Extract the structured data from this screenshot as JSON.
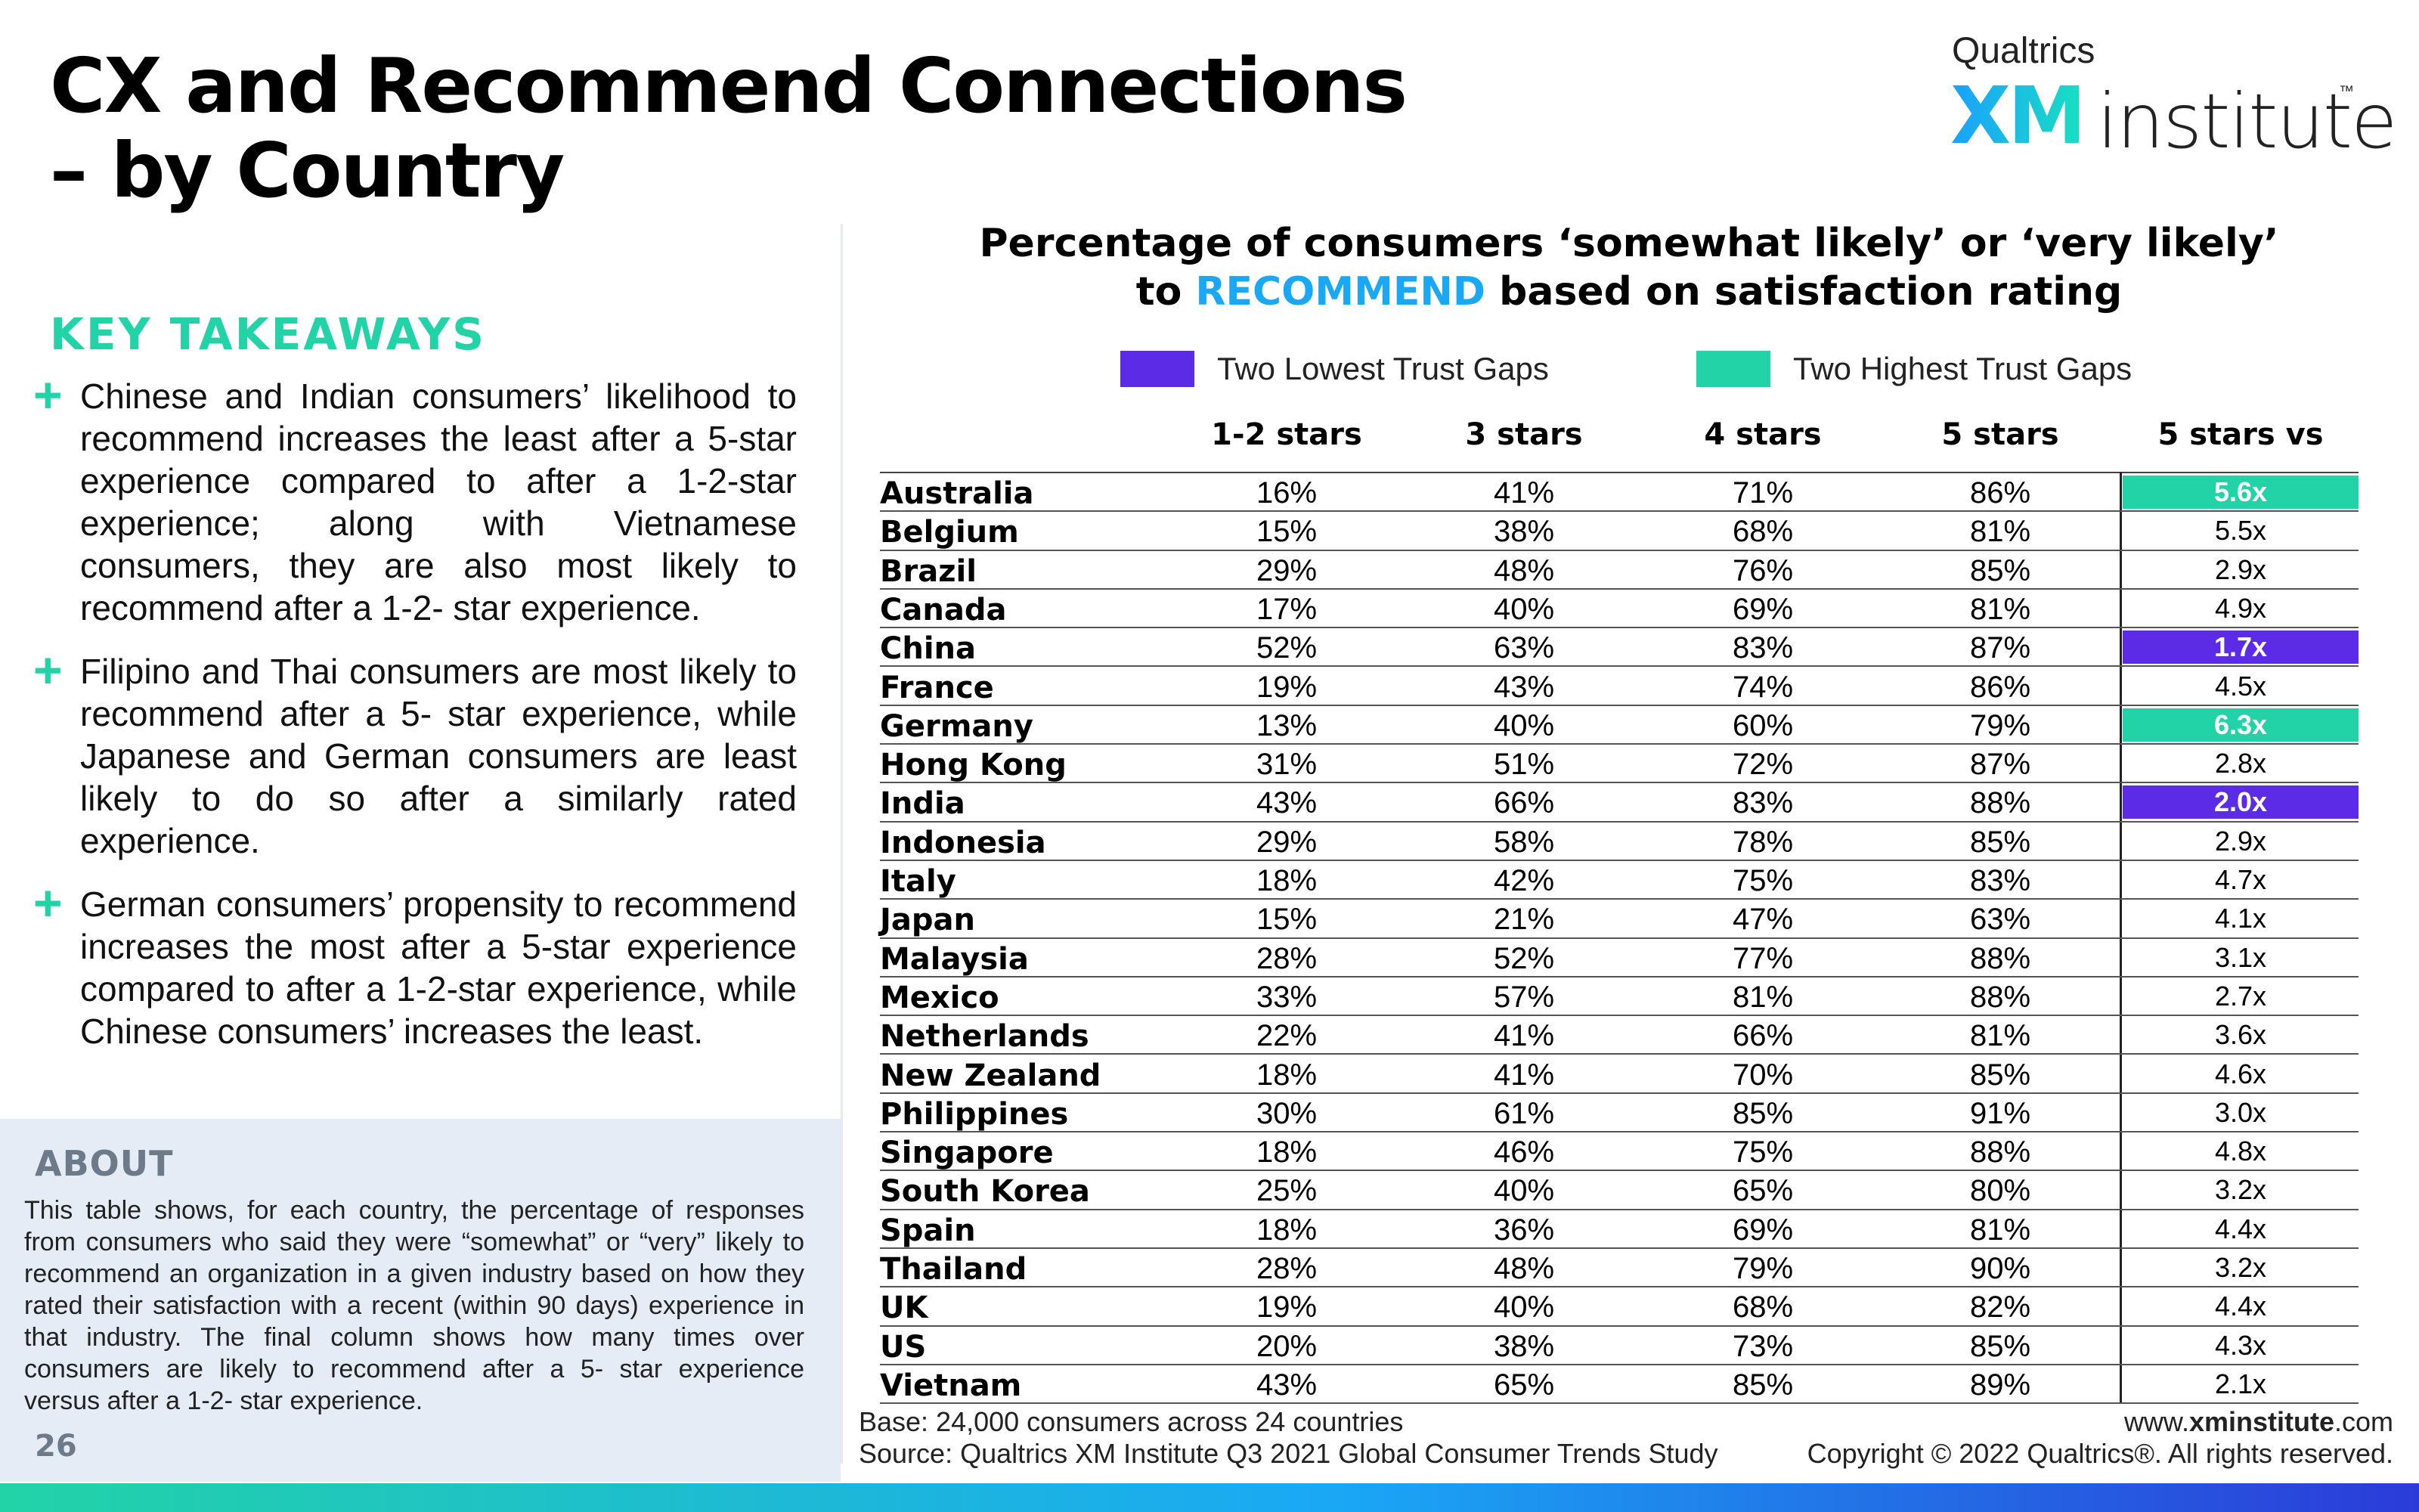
{
  "header": {
    "title_line1": "CX and Recommend Connections",
    "title_line2": "– by Country",
    "logo": {
      "top": "Qualtrics",
      "xm": "XM",
      "institute": "institute",
      "tm": "™"
    }
  },
  "key_takeaways": {
    "heading": "KEY TAKEAWAYS",
    "bullet_symbol": "+",
    "items": [
      "Chinese and Indian consumers’ likelihood to recommend increases the least after a 5-star experience compared to after a 1-2-star experience; along with Vietnamese consumers, they are also most likely to recommend after a 1-2- star experience.",
      "Filipino and Thai consumers are most likely to recommend after a 5- star experience, while Japanese and German consumers are least likely to do so after a similarly rated experience.",
      "German consumers’ propensity to recommend increases the most after a 5-star experience compared to after a 1-2-star experience, while Chinese consumers’ increases the least."
    ]
  },
  "about": {
    "heading": "ABOUT",
    "text": "This table shows, for each country, the percentage of responses from consumers who said they were “somewhat” or “very” likely to recommend an organization in a given industry based on how they rated their satisfaction with a recent (within 90 days) experience in that industry. The final column shows how many times over consumers are likely to recommend after a 5- star experience versus after a 1-2- star experience.",
    "page_number": "26"
  },
  "table": {
    "title_line1": "Percentage of consumers ‘somewhat likely’ or ‘very likely’",
    "title_line2_pre": "to ",
    "title_line2_highlight": "RECOMMEND",
    "title_line2_post": " based on satisfaction rating",
    "legend": [
      {
        "label": "Two Lowest Trust Gaps",
        "color": "#5b2be6"
      },
      {
        "label": "Two Highest Trust Gaps",
        "color": "#22d3a7"
      }
    ],
    "columns": [
      "1-2 stars",
      "3 stars",
      "4 stars",
      "5 stars",
      "5 stars vs"
    ],
    "rows": [
      {
        "country": "Australia",
        "v": [
          "16%",
          "41%",
          "71%",
          "86%"
        ],
        "ratio": "5.6x",
        "hl": "hi"
      },
      {
        "country": "Belgium",
        "v": [
          "15%",
          "38%",
          "68%",
          "81%"
        ],
        "ratio": "5.5x",
        "hl": ""
      },
      {
        "country": "Brazil",
        "v": [
          "29%",
          "48%",
          "76%",
          "85%"
        ],
        "ratio": "2.9x",
        "hl": ""
      },
      {
        "country": "Canada",
        "v": [
          "17%",
          "40%",
          "69%",
          "81%"
        ],
        "ratio": "4.9x",
        "hl": ""
      },
      {
        "country": "China",
        "v": [
          "52%",
          "63%",
          "83%",
          "87%"
        ],
        "ratio": "1.7x",
        "hl": "lo"
      },
      {
        "country": "France",
        "v": [
          "19%",
          "43%",
          "74%",
          "86%"
        ],
        "ratio": "4.5x",
        "hl": ""
      },
      {
        "country": "Germany",
        "v": [
          "13%",
          "40%",
          "60%",
          "79%"
        ],
        "ratio": "6.3x",
        "hl": "hi"
      },
      {
        "country": "Hong Kong",
        "v": [
          "31%",
          "51%",
          "72%",
          "87%"
        ],
        "ratio": "2.8x",
        "hl": ""
      },
      {
        "country": "India",
        "v": [
          "43%",
          "66%",
          "83%",
          "88%"
        ],
        "ratio": "2.0x",
        "hl": "lo"
      },
      {
        "country": "Indonesia",
        "v": [
          "29%",
          "58%",
          "78%",
          "85%"
        ],
        "ratio": "2.9x",
        "hl": ""
      },
      {
        "country": "Italy",
        "v": [
          "18%",
          "42%",
          "75%",
          "83%"
        ],
        "ratio": "4.7x",
        "hl": ""
      },
      {
        "country": "Japan",
        "v": [
          "15%",
          "21%",
          "47%",
          "63%"
        ],
        "ratio": "4.1x",
        "hl": ""
      },
      {
        "country": "Malaysia",
        "v": [
          "28%",
          "52%",
          "77%",
          "88%"
        ],
        "ratio": "3.1x",
        "hl": ""
      },
      {
        "country": "Mexico",
        "v": [
          "33%",
          "57%",
          "81%",
          "88%"
        ],
        "ratio": "2.7x",
        "hl": ""
      },
      {
        "country": "Netherlands",
        "v": [
          "22%",
          "41%",
          "66%",
          "81%"
        ],
        "ratio": "3.6x",
        "hl": ""
      },
      {
        "country": "New Zealand",
        "v": [
          "18%",
          "41%",
          "70%",
          "85%"
        ],
        "ratio": "4.6x",
        "hl": ""
      },
      {
        "country": "Philippines",
        "v": [
          "30%",
          "61%",
          "85%",
          "91%"
        ],
        "ratio": "3.0x",
        "hl": ""
      },
      {
        "country": "Singapore",
        "v": [
          "18%",
          "46%",
          "75%",
          "88%"
        ],
        "ratio": "4.8x",
        "hl": ""
      },
      {
        "country": "South Korea",
        "v": [
          "25%",
          "40%",
          "65%",
          "80%"
        ],
        "ratio": "3.2x",
        "hl": ""
      },
      {
        "country": "Spain",
        "v": [
          "18%",
          "36%",
          "69%",
          "81%"
        ],
        "ratio": "4.4x",
        "hl": ""
      },
      {
        "country": "Thailand",
        "v": [
          "28%",
          "48%",
          "79%",
          "90%"
        ],
        "ratio": "3.2x",
        "hl": ""
      },
      {
        "country": "UK",
        "v": [
          "19%",
          "40%",
          "68%",
          "82%"
        ],
        "ratio": "4.4x",
        "hl": ""
      },
      {
        "country": "US",
        "v": [
          "20%",
          "38%",
          "73%",
          "85%"
        ],
        "ratio": "4.3x",
        "hl": ""
      },
      {
        "country": "Vietnam",
        "v": [
          "43%",
          "65%",
          "85%",
          "89%"
        ],
        "ratio": "2.1x",
        "hl": ""
      }
    ]
  },
  "footer": {
    "base": "Base: 24,000 consumers across 24 countries",
    "source": "Source: Qualtrics XM Institute Q3 2021 Global Consumer Trends Study",
    "url_pre": "www.",
    "url_bold": "xminstitute",
    "url_post": ".com",
    "copyright": "Copyright © 2022 Qualtrics®. All rights reserved."
  }
}
